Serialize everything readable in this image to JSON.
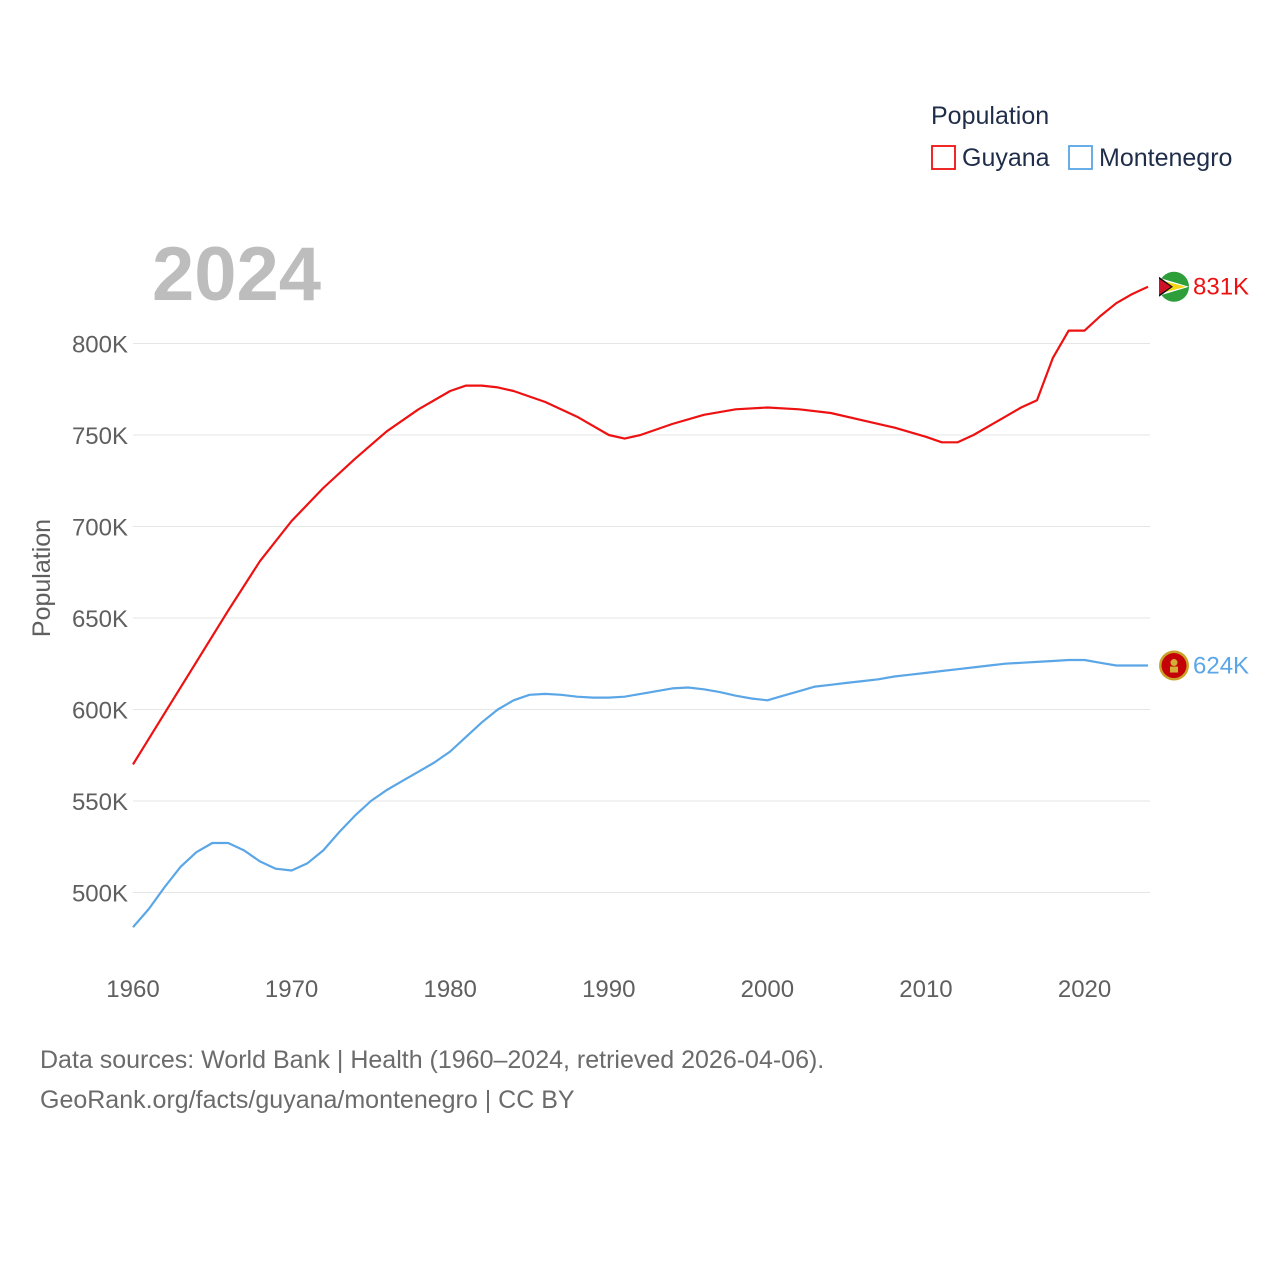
{
  "chart_data": {
    "type": "line",
    "title": "2024",
    "ylabel": "Population",
    "xlabel": "",
    "legend_title": "Population",
    "xlim": [
      1960,
      2024
    ],
    "ylim": [
      462000,
      862000
    ],
    "x_ticks": [
      1960,
      1970,
      1980,
      1990,
      2000,
      2010,
      2020
    ],
    "y_ticks": [
      500000,
      550000,
      600000,
      650000,
      700000,
      750000,
      800000
    ],
    "y_tick_labels": [
      "500K",
      "550K",
      "600K",
      "650K",
      "700K",
      "750K",
      "800K"
    ],
    "grid": true,
    "legend_position": "top-right",
    "series": [
      {
        "name": "Guyana",
        "color": "#ee1111",
        "end_label": "831K",
        "flag_icon": "guyana-flag-icon",
        "points": [
          [
            1960,
            570000
          ],
          [
            1962,
            598000
          ],
          [
            1964,
            626000
          ],
          [
            1966,
            654000
          ],
          [
            1968,
            681000
          ],
          [
            1970,
            703000
          ],
          [
            1972,
            721000
          ],
          [
            1974,
            737000
          ],
          [
            1976,
            752000
          ],
          [
            1978,
            764000
          ],
          [
            1980,
            774000
          ],
          [
            1981,
            777000
          ],
          [
            1982,
            777000
          ],
          [
            1983,
            776000
          ],
          [
            1984,
            774000
          ],
          [
            1986,
            768000
          ],
          [
            1988,
            760000
          ],
          [
            1989,
            755000
          ],
          [
            1990,
            750000
          ],
          [
            1991,
            748000
          ],
          [
            1992,
            750000
          ],
          [
            1994,
            756000
          ],
          [
            1996,
            761000
          ],
          [
            1998,
            764000
          ],
          [
            2000,
            765000
          ],
          [
            2002,
            764000
          ],
          [
            2004,
            762000
          ],
          [
            2006,
            758000
          ],
          [
            2008,
            754000
          ],
          [
            2010,
            749000
          ],
          [
            2011,
            746000
          ],
          [
            2012,
            746000
          ],
          [
            2013,
            750000
          ],
          [
            2014,
            755000
          ],
          [
            2015,
            760000
          ],
          [
            2016,
            765000
          ],
          [
            2017,
            769000
          ],
          [
            2018,
            792000
          ],
          [
            2019,
            807000
          ],
          [
            2020,
            807000
          ],
          [
            2021,
            815000
          ],
          [
            2022,
            822000
          ],
          [
            2023,
            827000
          ],
          [
            2024,
            831000
          ]
        ]
      },
      {
        "name": "Montenegro",
        "color": "#5aa6e6",
        "end_label": "624K",
        "flag_icon": "montenegro-flag-icon",
        "points": [
          [
            1960,
            481000
          ],
          [
            1961,
            491000
          ],
          [
            1962,
            503000
          ],
          [
            1963,
            514000
          ],
          [
            1964,
            522000
          ],
          [
            1965,
            527000
          ],
          [
            1966,
            527000
          ],
          [
            1967,
            523000
          ],
          [
            1968,
            517000
          ],
          [
            1969,
            513000
          ],
          [
            1970,
            512000
          ],
          [
            1971,
            516000
          ],
          [
            1972,
            523000
          ],
          [
            1973,
            533000
          ],
          [
            1974,
            542000
          ],
          [
            1975,
            550000
          ],
          [
            1976,
            556000
          ],
          [
            1977,
            561000
          ],
          [
            1978,
            566000
          ],
          [
            1979,
            571000
          ],
          [
            1980,
            577000
          ],
          [
            1981,
            585000
          ],
          [
            1982,
            593000
          ],
          [
            1983,
            600000
          ],
          [
            1984,
            605000
          ],
          [
            1985,
            608000
          ],
          [
            1986,
            608500
          ],
          [
            1987,
            608000
          ],
          [
            1988,
            607000
          ],
          [
            1989,
            606500
          ],
          [
            1990,
            606500
          ],
          [
            1991,
            607000
          ],
          [
            1992,
            608500
          ],
          [
            1993,
            610000
          ],
          [
            1994,
            611500
          ],
          [
            1995,
            612000
          ],
          [
            1996,
            611000
          ],
          [
            1997,
            609500
          ],
          [
            1998,
            607500
          ],
          [
            1999,
            606000
          ],
          [
            2000,
            605000
          ],
          [
            2001,
            607500
          ],
          [
            2002,
            610000
          ],
          [
            2003,
            612500
          ],
          [
            2004,
            613500
          ],
          [
            2005,
            614500
          ],
          [
            2006,
            615500
          ],
          [
            2007,
            616500
          ],
          [
            2008,
            618000
          ],
          [
            2009,
            619000
          ],
          [
            2010,
            620000
          ],
          [
            2011,
            621000
          ],
          [
            2012,
            622000
          ],
          [
            2013,
            623000
          ],
          [
            2014,
            624000
          ],
          [
            2015,
            625000
          ],
          [
            2016,
            625500
          ],
          [
            2017,
            626000
          ],
          [
            2018,
            626500
          ],
          [
            2019,
            627000
          ],
          [
            2020,
            627000
          ],
          [
            2021,
            625500
          ],
          [
            2022,
            624000
          ],
          [
            2023,
            624000
          ],
          [
            2024,
            624000
          ]
        ]
      }
    ]
  },
  "footer": {
    "line1": "Data sources: World Bank | Health (1960–2024, retrieved 2026-04-06).",
    "line2": "GeoRank.org/facts/guyana/montenegro | CC BY"
  }
}
